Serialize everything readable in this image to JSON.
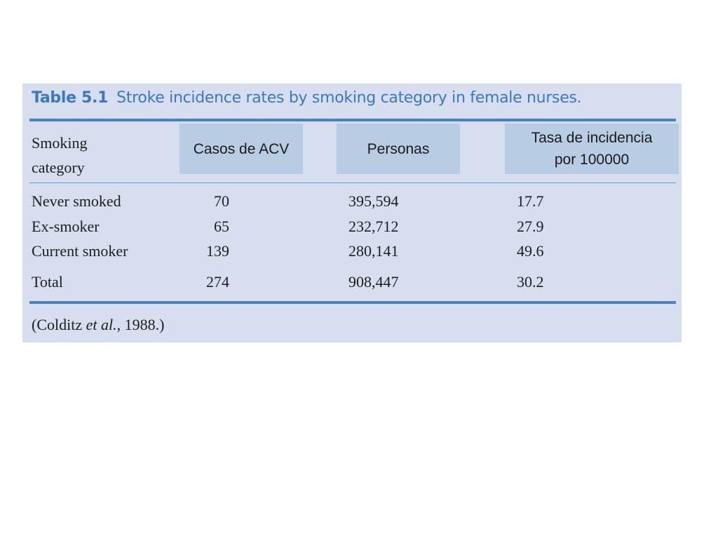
{
  "table": {
    "number": "Table 5.1",
    "title": "Stroke incidence rates by smoking category in female nurses.",
    "header": {
      "category_line1": "Smoking",
      "category_line2": "category",
      "cases": "Casos de ACV",
      "persons": "Personas",
      "rate_line1": "Tasa de incidencia",
      "rate_line2": "por 100000"
    },
    "rows": [
      {
        "category": "Never smoked",
        "cases": "70",
        "persons": "395,594",
        "rate": "17.7"
      },
      {
        "category": "Ex-smoker",
        "cases": "65",
        "persons": "232,712",
        "rate": "27.9"
      },
      {
        "category": "Current smoker",
        "cases": "139",
        "persons": "280,141",
        "rate": "49.6"
      }
    ],
    "total": {
      "category": "Total",
      "cases": "274",
      "persons": "908,447",
      "rate": "30.2"
    },
    "source_prefix": "(Colditz ",
    "source_italic": "et al.",
    "source_suffix": ", 1988.)"
  },
  "colors": {
    "panel_bg": "#d6deef",
    "title_blue": "#3d78bf",
    "rule_blue": "#4a80c6",
    "header_box": "#b8cce4"
  }
}
